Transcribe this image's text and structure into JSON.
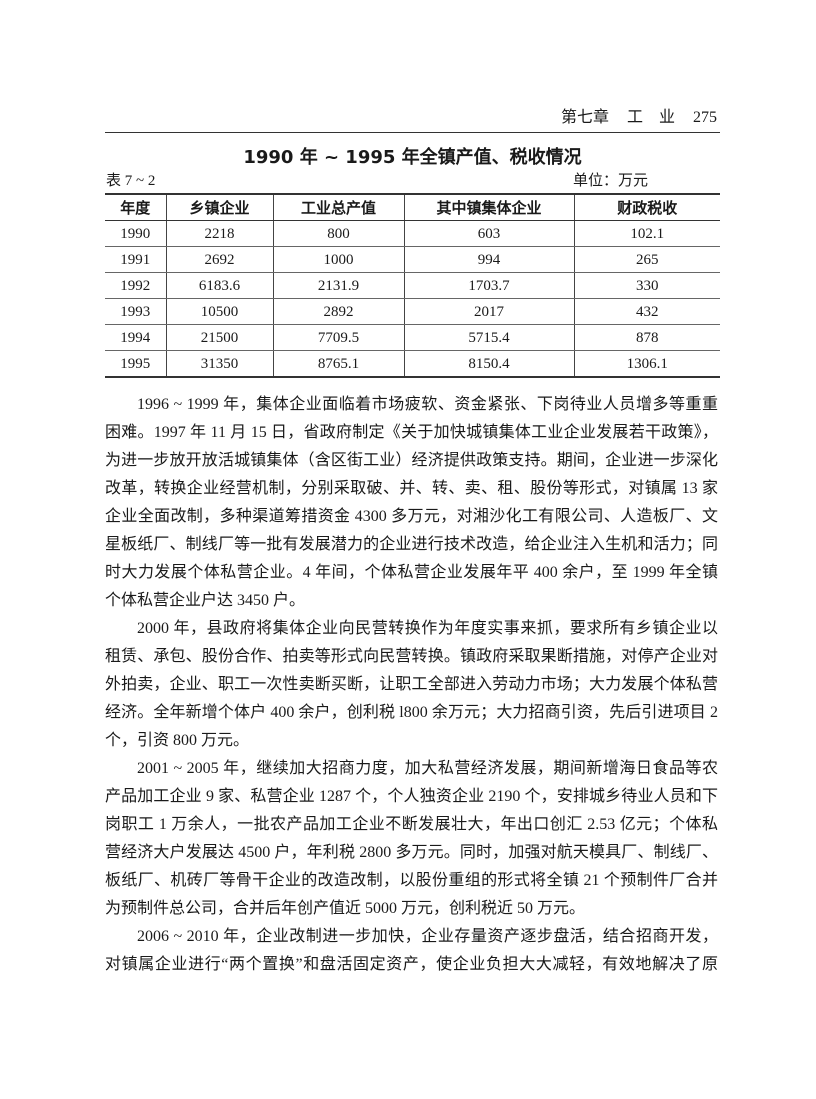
{
  "header": {
    "chapter": "第七章",
    "section": "工　业",
    "page_number": "275"
  },
  "table": {
    "title": "1990 年 ~ 1995 年全镇产值、税收情况",
    "number": "表 7 ~ 2",
    "unit": "单位：万元",
    "columns": [
      "年度",
      "乡镇企业",
      "工业总产值",
      "其中镇集体企业",
      "财政税收"
    ],
    "rows": [
      [
        "1990",
        "2218",
        "800",
        "603",
        "102.1"
      ],
      [
        "1991",
        "2692",
        "1000",
        "994",
        "265"
      ],
      [
        "1992",
        "6183.6",
        "2131.9",
        "1703.7",
        "330"
      ],
      [
        "1993",
        "10500",
        "2892",
        "2017",
        "432"
      ],
      [
        "1994",
        "21500",
        "7709.5",
        "5715.4",
        "878"
      ],
      [
        "1995",
        "31350",
        "8765.1",
        "8150.4",
        "1306.1"
      ]
    ]
  },
  "paragraphs": [
    [
      "1996 ~ 1999 年，集体企业面临着市场疲软、资金紧张、下岗待业人员增多等重重",
      "困难。1997 年 11 月 15 日，省政府制定《关于加快城镇集体工业企业发展若干政策》，",
      "为进一步放开放活城镇集体（含区街工业）经济提供政策支持。期间，企业进一步深化",
      "改革，转换企业经营机制，分别采取破、并、转、卖、租、股份等形式，对镇属 13 家",
      "企业全面改制，多种渠道筹措资金 4300 多万元，对湘沙化工有限公司、人造板厂、文",
      "星板纸厂、制线厂等一批有发展潜力的企业进行技术改造，给企业注入生机和活力；同",
      "时大力发展个体私营企业。4 年间，个体私营企业发展年平 400 余户，至 1999 年全镇",
      "个体私营企业户达 3450 户。"
    ],
    [
      "2000 年，县政府将集体企业向民营转换作为年度实事来抓，要求所有乡镇企业以",
      "租赁、承包、股份合作、拍卖等形式向民营转换。镇政府采取果断措施，对停产企业对",
      "外拍卖，企业、职工一次性卖断买断，让职工全部进入劳动力市场；大力发展个体私营",
      "经济。全年新增个体户 400 余户，创利税 l800 余万元；大力招商引资，先后引进项目 2",
      "个，引资 800 万元。"
    ],
    [
      "2001 ~ 2005 年，继续加大招商力度，加大私营经济发展，期间新增海日食品等农",
      "产品加工企业 9 家、私营企业 1287 个，个人独资企业 2190 个，安排城乡待业人员和下",
      "岗职工 1 万余人，一批农产品加工企业不断发展壮大，年出口创汇 2.53 亿元；个体私",
      "营经济大户发展达 4500 户，年利税 2800 多万元。同时，加强对航天模具厂、制线厂、",
      "板纸厂、机砖厂等骨干企业的改造改制，以股份重组的形式将全镇 21 个预制件厂合并",
      "为预制件总公司，合并后年创产值近 5000 万元，创利税近 50 万元。"
    ],
    [
      "2006 ~ 2010 年，企业改制进一步加快，企业存量资产逐步盘活，结合招商开发，",
      "对镇属企业进行“两个置换”和盘活固定资产，使企业负担大大减轻，有效地解决了原"
    ]
  ]
}
